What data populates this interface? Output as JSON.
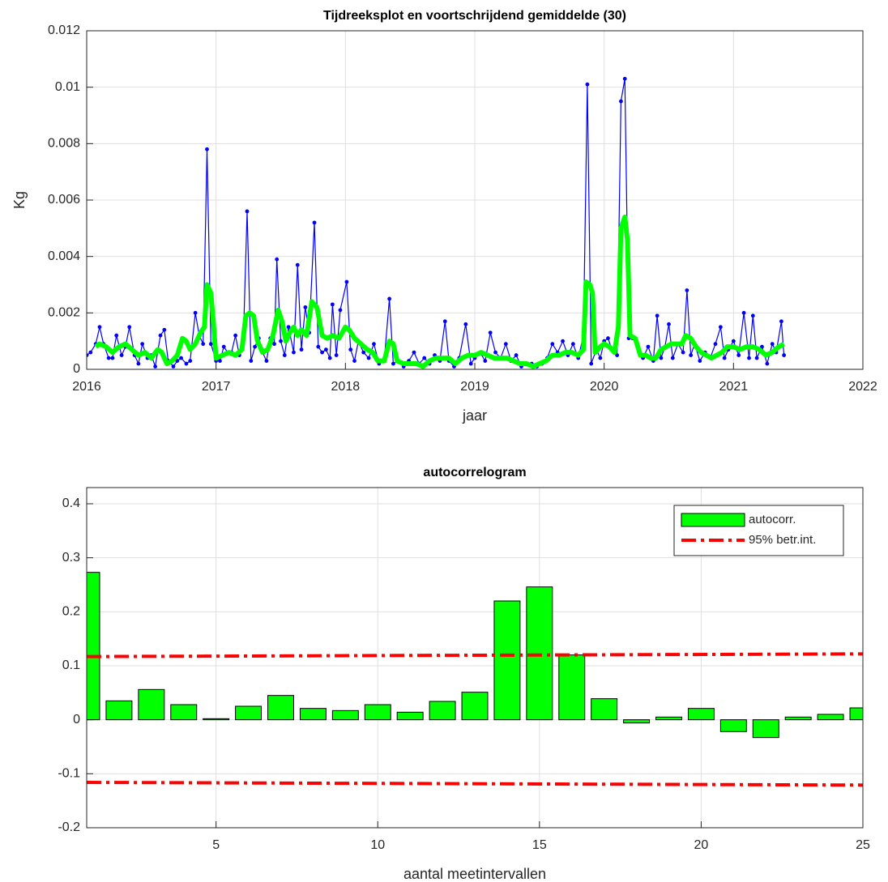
{
  "chart_data": [
    {
      "type": "line",
      "title": "Tijdreeksplot en voortschrijdend gemiddelde (30)",
      "xlabel": "jaar",
      "ylabel": "Kg",
      "xlim": [
        2016,
        2022
      ],
      "xticks": [
        2016,
        2017,
        2018,
        2019,
        2020,
        2021,
        2022
      ],
      "ylim": [
        0,
        0.012
      ],
      "yticks": [
        0,
        0.002,
        0.004,
        0.006,
        0.008,
        0.01,
        0.012
      ],
      "grid": true,
      "series": [
        {
          "color": "#0000ff",
          "marker": true,
          "x": [
            2016.0,
            2016.03,
            2016.07,
            2016.1,
            2016.13,
            2016.17,
            2016.2,
            2016.23,
            2016.27,
            2016.3,
            2016.33,
            2016.37,
            2016.4,
            2016.43,
            2016.47,
            2016.5,
            2016.53,
            2016.57,
            2016.6,
            2016.63,
            2016.67,
            2016.7,
            2016.73,
            2016.77,
            2016.8,
            2016.84,
            2016.87,
            2016.9,
            2016.93,
            2016.96,
            2017.0,
            2017.03,
            2017.06,
            2017.09,
            2017.12,
            2017.15,
            2017.18,
            2017.21,
            2017.24,
            2017.27,
            2017.3,
            2017.33,
            2017.36,
            2017.39,
            2017.42,
            2017.45,
            2017.47,
            2017.5,
            2017.53,
            2017.56,
            2017.6,
            2017.63,
            2017.66,
            2017.69,
            2017.72,
            2017.76,
            2017.79,
            2017.82,
            2017.85,
            2017.88,
            2017.9,
            2017.93,
            2017.96,
            2018.01,
            2018.04,
            2018.07,
            2018.1,
            2018.14,
            2018.18,
            2018.22,
            2018.26,
            2018.3,
            2018.34,
            2018.37,
            2018.41,
            2018.45,
            2018.49,
            2018.53,
            2018.57,
            2018.61,
            2018.65,
            2018.69,
            2018.73,
            2018.77,
            2018.8,
            2018.84,
            2018.88,
            2018.93,
            2018.97,
            2019.0,
            2019.04,
            2019.08,
            2019.12,
            2019.16,
            2019.2,
            2019.24,
            2019.28,
            2019.32,
            2019.36,
            2019.4,
            2019.44,
            2019.48,
            2019.52,
            2019.56,
            2019.6,
            2019.64,
            2019.68,
            2019.72,
            2019.76,
            2019.8,
            2019.84,
            2019.87,
            2019.9,
            2019.94,
            2019.97,
            2020.0,
            2020.03,
            2020.06,
            2020.1,
            2020.13,
            2020.16,
            2020.19,
            2020.22,
            2020.26,
            2020.3,
            2020.34,
            2020.38,
            2020.41,
            2020.44,
            2020.47,
            2020.5,
            2020.53,
            2020.57,
            2020.61,
            2020.64,
            2020.67,
            2020.7,
            2020.74,
            2020.78,
            2020.82,
            2020.86,
            2020.9,
            2020.93,
            2020.96,
            2021.0,
            2021.04,
            2021.08,
            2021.12,
            2021.15,
            2021.18,
            2021.22,
            2021.26,
            2021.3,
            2021.33,
            2021.37,
            2021.39
          ],
          "values": [
            0.0005,
            0.0006,
            0.0009,
            0.0015,
            0.0009,
            0.0004,
            0.0004,
            0.0012,
            0.0005,
            0.0008,
            0.0015,
            0.0005,
            0.0002,
            0.0009,
            0.0004,
            0.0005,
            0.0001,
            0.0012,
            0.0014,
            0.0003,
            0.0001,
            0.0003,
            0.0004,
            0.0002,
            0.0003,
            0.002,
            0.0012,
            0.0009,
            0.0078,
            0.0009,
            0.0003,
            0.0003,
            0.0008,
            0.0006,
            0.0006,
            0.0012,
            0.0005,
            0.0009,
            0.0056,
            0.0003,
            0.0008,
            0.0011,
            0.0006,
            0.0003,
            0.0011,
            0.0009,
            0.0039,
            0.001,
            0.0005,
            0.0015,
            0.0006,
            0.0037,
            0.0007,
            0.0022,
            0.0013,
            0.0052,
            0.0008,
            0.0006,
            0.0007,
            0.0004,
            0.0023,
            0.0005,
            0.0021,
            0.0031,
            0.0007,
            0.0003,
            0.001,
            0.0006,
            0.0004,
            0.0009,
            0.0002,
            0.0003,
            0.0025,
            0.0002,
            0.0003,
            0.0001,
            0.0003,
            0.0006,
            0.0002,
            0.0004,
            0.0002,
            0.0005,
            0.0003,
            0.0017,
            0.0003,
            0.0001,
            0.0004,
            0.0016,
            0.0002,
            0.0004,
            0.0006,
            0.0003,
            0.0013,
            0.0006,
            0.0004,
            0.0009,
            0.0003,
            0.0005,
            0.0001,
            0.0002,
            0.0002,
            0.0001,
            0.0002,
            0.0004,
            0.0009,
            0.0006,
            0.001,
            0.0005,
            0.0009,
            0.0004,
            0.0012,
            0.0101,
            0.0002,
            0.0007,
            0.0004,
            0.001,
            0.0011,
            0.0007,
            0.0005,
            0.0095,
            0.0103,
            0.0011,
            0.0011,
            0.0008,
            0.0004,
            0.0008,
            0.0003,
            0.0019,
            0.0004,
            0.0008,
            0.0016,
            0.0004,
            0.0009,
            0.0006,
            0.0028,
            0.0005,
            0.0009,
            0.0003,
            0.0006,
            0.0004,
            0.0009,
            0.0015,
            0.0004,
            0.0007,
            0.001,
            0.0005,
            0.002,
            0.0004,
            0.0019,
            0.0004,
            0.0008,
            0.0002,
            0.0009,
            0.0006,
            0.0017,
            0.0005
          ]
        },
        {
          "color": "#00ff00",
          "marker": false,
          "x": [
            2016.07,
            2016.1,
            2016.15,
            2016.2,
            2016.25,
            2016.3,
            2016.35,
            2016.4,
            2016.45,
            2016.5,
            2016.55,
            2016.58,
            2016.62,
            2016.66,
            2016.7,
            2016.74,
            2016.77,
            2016.8,
            2016.84,
            2016.88,
            2016.91,
            2016.93,
            2016.96,
            2016.98,
            2017.0,
            2017.05,
            2017.1,
            2017.15,
            2017.2,
            2017.23,
            2017.26,
            2017.29,
            2017.32,
            2017.36,
            2017.4,
            2017.44,
            2017.48,
            2017.51,
            2017.54,
            2017.57,
            2017.6,
            2017.63,
            2017.66,
            2017.7,
            2017.74,
            2017.78,
            2017.82,
            2017.86,
            2017.9,
            2017.95,
            2018.0,
            2018.03,
            2018.07,
            2018.12,
            2018.17,
            2018.21,
            2018.25,
            2018.3,
            2018.34,
            2018.37,
            2018.4,
            2018.45,
            2018.5,
            2018.55,
            2018.6,
            2018.65,
            2018.7,
            2018.75,
            2018.8,
            2018.85,
            2018.9,
            2018.95,
            2019.0,
            2019.05,
            2019.1,
            2019.15,
            2019.2,
            2019.25,
            2019.3,
            2019.35,
            2019.4,
            2019.45,
            2019.5,
            2019.55,
            2019.6,
            2019.65,
            2019.7,
            2019.75,
            2019.8,
            2019.84,
            2019.86,
            2019.89,
            2019.91,
            2019.93,
            2019.97,
            2020.0,
            2020.04,
            2020.08,
            2020.11,
            2020.13,
            2020.16,
            2020.18,
            2020.2,
            2020.24,
            2020.28,
            2020.32,
            2020.36,
            2020.4,
            2020.44,
            2020.48,
            2020.52,
            2020.56,
            2020.6,
            2020.63,
            2020.67,
            2020.71,
            2020.75,
            2020.79,
            2020.83,
            2020.87,
            2020.91,
            2020.95,
            2021.0,
            2021.05,
            2021.1,
            2021.15,
            2021.2,
            2021.25,
            2021.3,
            2021.35,
            2021.39
          ],
          "values": [
            0.0008,
            0.0009,
            0.0008,
            0.0006,
            0.0008,
            0.0009,
            0.0007,
            0.0005,
            0.0006,
            0.0004,
            0.0007,
            0.0006,
            0.0002,
            0.0003,
            0.0005,
            0.0011,
            0.001,
            0.0007,
            0.0009,
            0.0013,
            0.0015,
            0.003,
            0.0027,
            0.0016,
            0.0004,
            0.0005,
            0.0006,
            0.0005,
            0.0007,
            0.0019,
            0.002,
            0.0019,
            0.001,
            0.0006,
            0.0007,
            0.0012,
            0.0021,
            0.0017,
            0.001,
            0.0013,
            0.0015,
            0.0012,
            0.0014,
            0.0012,
            0.0024,
            0.0022,
            0.0012,
            0.0011,
            0.0012,
            0.0011,
            0.0015,
            0.0014,
            0.0011,
            0.0009,
            0.0007,
            0.0006,
            0.0003,
            0.0003,
            0.001,
            0.0009,
            0.0003,
            0.0002,
            0.0002,
            0.0002,
            0.0001,
            0.0003,
            0.0004,
            0.0004,
            0.0004,
            0.0002,
            0.0004,
            0.0005,
            0.0005,
            0.0006,
            0.0005,
            0.0004,
            0.0004,
            0.0004,
            0.0003,
            0.0002,
            0.0002,
            0.0001,
            0.0002,
            0.0003,
            0.0005,
            0.0005,
            0.0006,
            0.0006,
            0.0005,
            0.0007,
            0.0031,
            0.003,
            0.0027,
            0.0006,
            0.0008,
            0.0009,
            0.0008,
            0.0006,
            0.0015,
            0.005,
            0.0054,
            0.0046,
            0.0012,
            0.0011,
            0.0005,
            0.0005,
            0.0004,
            0.0004,
            0.0007,
            0.0008,
            0.0009,
            0.0009,
            0.0009,
            0.0012,
            0.0011,
            0.0008,
            0.0006,
            0.0005,
            0.0004,
            0.0005,
            0.0006,
            0.0008,
            0.0008,
            0.0007,
            0.0008,
            0.0008,
            0.0007,
            0.0005,
            0.0006,
            0.0008,
            0.0009
          ]
        }
      ]
    },
    {
      "type": "bar",
      "title": "autocorrelogram",
      "xlabel": "aantal meetintervallen",
      "xlim": [
        1,
        25
      ],
      "xticks": [
        5,
        10,
        15,
        20,
        25
      ],
      "ylim": [
        -0.2,
        0.43
      ],
      "yticks": [
        -0.2,
        -0.1,
        0,
        0.1,
        0.2,
        0.3,
        0.4
      ],
      "grid": true,
      "legend": "northeast",
      "series": [
        {
          "name": "autocorr.",
          "color": "#00ff00",
          "x": [
            1,
            2,
            3,
            4,
            5,
            6,
            7,
            8,
            9,
            10,
            11,
            12,
            13,
            14,
            15,
            16,
            17,
            18,
            19,
            20,
            21,
            22,
            23,
            24,
            25
          ],
          "values": [
            0.273,
            0.035,
            0.056,
            0.028,
            0.002,
            0.025,
            0.045,
            0.021,
            0.017,
            0.028,
            0.014,
            0.034,
            0.051,
            0.22,
            0.246,
            0.12,
            0.039,
            -0.006,
            0.005,
            0.021,
            -0.022,
            -0.033,
            0.005,
            0.01,
            0.022
          ]
        }
      ],
      "confidence_interval": {
        "name": "95% betr.int.",
        "color": "#ff0000",
        "x": [
          1,
          25
        ],
        "upper": [
          0.117,
          0.122
        ],
        "lower": [
          -0.116,
          -0.121
        ]
      }
    }
  ]
}
